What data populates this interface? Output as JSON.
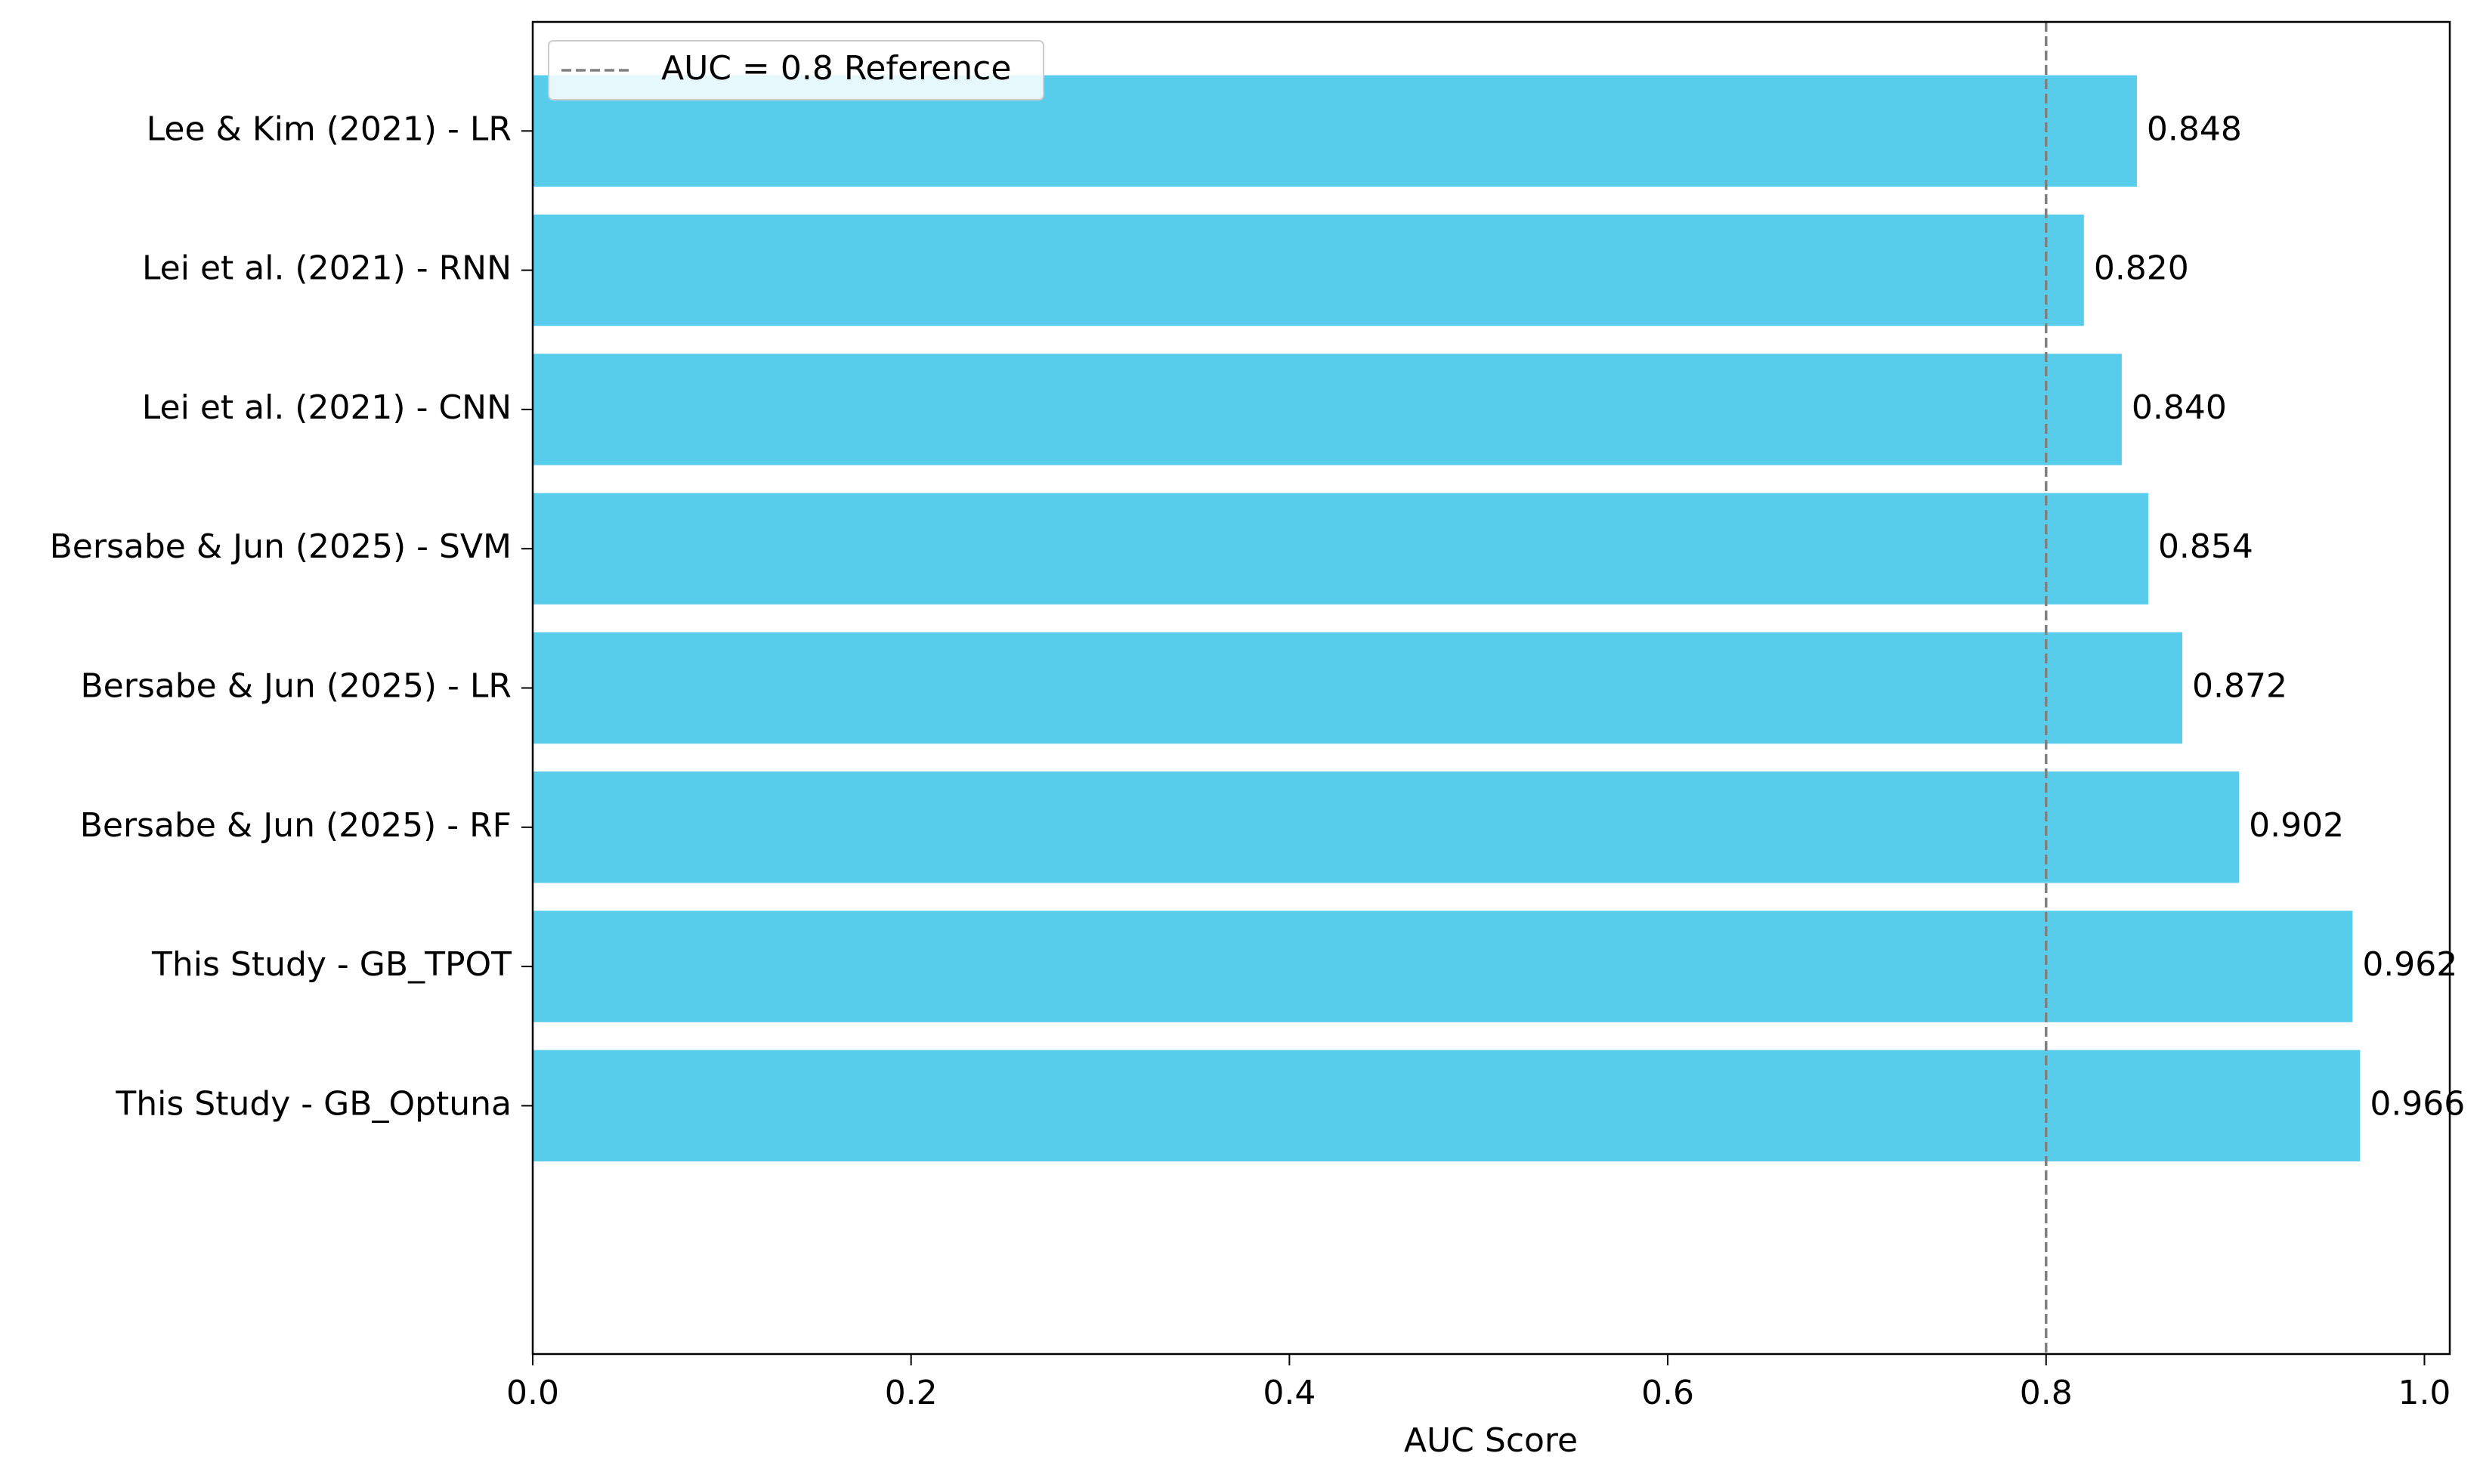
{
  "chart_data": {
    "type": "barh",
    "categories": [
      "Lee & Kim (2021) - LR",
      "Lei et al. (2021) - RNN",
      "Lei et al. (2021) - CNN",
      "Bersabe & Jun (2025) - SVM",
      "Bersabe & Jun (2025) - LR",
      "Bersabe & Jun (2025) - RF",
      "This Study - GB_TPOT",
      "This Study - GB_Optuna"
    ],
    "values": [
      0.848,
      0.82,
      0.84,
      0.854,
      0.872,
      0.902,
      0.962,
      0.966
    ],
    "value_labels": [
      "0.848",
      "0.820",
      "0.840",
      "0.854",
      "0.872",
      "0.902",
      "0.962",
      "0.966"
    ],
    "color": "#57cdeb",
    "xlabel": "AUC Score",
    "xlim": [
      0,
      1.0134
    ],
    "xticks": [
      {
        "value": 0,
        "label": "0.0"
      },
      0.2,
      0.4,
      0.6,
      0.8,
      {
        "value": 1,
        "label": "1.0"
      }
    ],
    "reference_line": {
      "value": 0.8,
      "label": "AUC = 0.8 Reference",
      "color": "#808080"
    },
    "legend": "upper left"
  }
}
